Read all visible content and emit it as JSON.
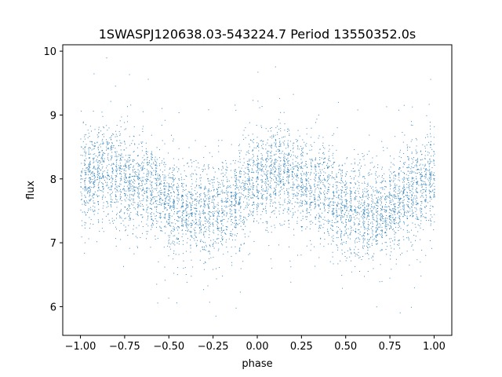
{
  "chart_data": {
    "type": "scatter",
    "title": "1SWASPJ120638.03-543224.7 Period 13550352.0s",
    "xlabel": "phase",
    "ylabel": "flux",
    "xlim": [
      -1.1,
      1.1
    ],
    "ylim": [
      5.55,
      10.1
    ],
    "xticks": [
      -1.0,
      -0.75,
      -0.5,
      -0.25,
      0.0,
      0.25,
      0.5,
      0.75,
      1.0
    ],
    "xtick_labels": [
      "−1.00",
      "−0.75",
      "−0.50",
      "−0.25",
      "0.00",
      "0.25",
      "0.50",
      "0.75",
      "1.00"
    ],
    "yticks": [
      6,
      7,
      8,
      9,
      10
    ],
    "ytick_labels": [
      "6",
      "7",
      "8",
      "9",
      "10"
    ],
    "grid": false,
    "marker_color": "#1f77b4",
    "trend": {
      "phase": [
        -1.0,
        -0.875,
        -0.75,
        -0.625,
        -0.5,
        -0.375,
        -0.25,
        -0.125,
        0.0,
        0.125,
        0.25,
        0.375,
        0.5,
        0.625,
        0.75,
        0.875,
        1.0
      ],
      "flux": [
        7.95,
        8.15,
        8.0,
        7.85,
        7.65,
        7.5,
        7.5,
        7.7,
        8.0,
        8.15,
        7.95,
        7.75,
        7.55,
        7.45,
        7.55,
        7.8,
        8.05
      ]
    },
    "scatter_sigma": 0.38
  }
}
